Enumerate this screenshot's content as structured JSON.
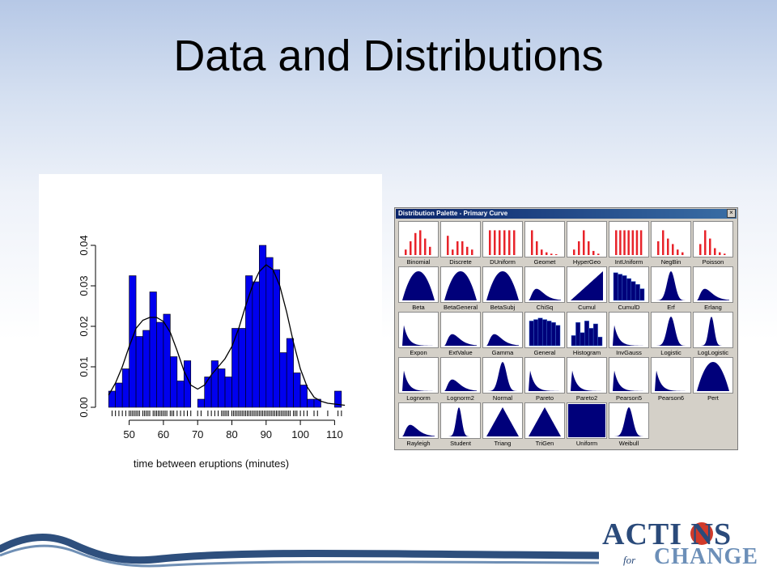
{
  "slide": {
    "title": "Data and Distributions"
  },
  "histogram": {
    "xlabel": "time between eruptions (minutes)",
    "bar_color": "#0000ee",
    "chart_data": {
      "type": "bar",
      "xlabel": "time between eruptions (minutes)",
      "ylabel": "",
      "xlim": [
        43,
        117
      ],
      "ylim": [
        0,
        0.045
      ],
      "xticks": [
        "50",
        "60",
        "70",
        "80",
        "90",
        "100",
        "110"
      ],
      "yticks": [
        "0.00",
        "0.01",
        "0.02",
        "0.03",
        "0.04"
      ],
      "bins": [
        {
          "x0": 44,
          "x1": 46,
          "y": 0.004
        },
        {
          "x0": 46,
          "x1": 48,
          "y": 0.006
        },
        {
          "x0": 48,
          "x1": 50,
          "y": 0.0095
        },
        {
          "x0": 50,
          "x1": 52,
          "y": 0.0325
        },
        {
          "x0": 52,
          "x1": 54,
          "y": 0.0175
        },
        {
          "x0": 54,
          "x1": 56,
          "y": 0.019
        },
        {
          "x0": 56,
          "x1": 58,
          "y": 0.0285
        },
        {
          "x0": 58,
          "x1": 60,
          "y": 0.021
        },
        {
          "x0": 60,
          "x1": 62,
          "y": 0.023
        },
        {
          "x0": 62,
          "x1": 64,
          "y": 0.0125
        },
        {
          "x0": 64,
          "x1": 66,
          "y": 0.0065
        },
        {
          "x0": 66,
          "x1": 68,
          "y": 0.0115
        },
        {
          "x0": 68,
          "x1": 70,
          "y": 0.0
        },
        {
          "x0": 70,
          "x1": 72,
          "y": 0.002
        },
        {
          "x0": 72,
          "x1": 74,
          "y": 0.0075
        },
        {
          "x0": 74,
          "x1": 76,
          "y": 0.0115
        },
        {
          "x0": 76,
          "x1": 78,
          "y": 0.0095
        },
        {
          "x0": 78,
          "x1": 80,
          "y": 0.0075
        },
        {
          "x0": 80,
          "x1": 82,
          "y": 0.0195
        },
        {
          "x0": 82,
          "x1": 84,
          "y": 0.0195
        },
        {
          "x0": 84,
          "x1": 86,
          "y": 0.0325
        },
        {
          "x0": 86,
          "x1": 88,
          "y": 0.031
        },
        {
          "x0": 88,
          "x1": 90,
          "y": 0.04
        },
        {
          "x0": 90,
          "x1": 92,
          "y": 0.037
        },
        {
          "x0": 92,
          "x1": 94,
          "y": 0.034
        },
        {
          "x0": 94,
          "x1": 96,
          "y": 0.0135
        },
        {
          "x0": 96,
          "x1": 98,
          "y": 0.017
        },
        {
          "x0": 98,
          "x1": 100,
          "y": 0.0085
        },
        {
          "x0": 100,
          "x1": 102,
          "y": 0.0055
        },
        {
          "x0": 102,
          "x1": 104,
          "y": 0.002
        },
        {
          "x0": 104,
          "x1": 106,
          "y": 0.002
        },
        {
          "x0": 106,
          "x1": 108,
          "y": 0.0
        },
        {
          "x0": 108,
          "x1": 110,
          "y": 0.0
        },
        {
          "x0": 110,
          "x1": 112,
          "y": 0.004
        }
      ],
      "density_curve": [
        {
          "x": 44,
          "y": 0.003
        },
        {
          "x": 46,
          "y": 0.006
        },
        {
          "x": 48,
          "y": 0.01
        },
        {
          "x": 50,
          "y": 0.015
        },
        {
          "x": 52,
          "y": 0.0195
        },
        {
          "x": 54,
          "y": 0.0215
        },
        {
          "x": 56,
          "y": 0.0222
        },
        {
          "x": 58,
          "y": 0.0222
        },
        {
          "x": 60,
          "y": 0.0212
        },
        {
          "x": 62,
          "y": 0.0185
        },
        {
          "x": 64,
          "y": 0.014
        },
        {
          "x": 66,
          "y": 0.009
        },
        {
          "x": 68,
          "y": 0.0055
        },
        {
          "x": 70,
          "y": 0.0045
        },
        {
          "x": 72,
          "y": 0.0055
        },
        {
          "x": 74,
          "y": 0.008
        },
        {
          "x": 76,
          "y": 0.01
        },
        {
          "x": 78,
          "y": 0.012
        },
        {
          "x": 80,
          "y": 0.015
        },
        {
          "x": 82,
          "y": 0.0195
        },
        {
          "x": 84,
          "y": 0.025
        },
        {
          "x": 86,
          "y": 0.03
        },
        {
          "x": 88,
          "y": 0.0335
        },
        {
          "x": 90,
          "y": 0.0352
        },
        {
          "x": 92,
          "y": 0.034
        },
        {
          "x": 94,
          "y": 0.03
        },
        {
          "x": 96,
          "y": 0.0235
        },
        {
          "x": 98,
          "y": 0.016
        },
        {
          "x": 100,
          "y": 0.0095
        },
        {
          "x": 102,
          "y": 0.005
        },
        {
          "x": 104,
          "y": 0.0025
        },
        {
          "x": 106,
          "y": 0.0015
        },
        {
          "x": 108,
          "y": 0.001
        },
        {
          "x": 110,
          "y": 0.0008
        },
        {
          "x": 113,
          "y": 0.0005
        }
      ],
      "rug": [
        45,
        46,
        47,
        48,
        49,
        50,
        50.5,
        51,
        51.5,
        52,
        52.5,
        53,
        54,
        54.5,
        55,
        55.5,
        56,
        57,
        57.5,
        58,
        58.5,
        59,
        59.5,
        60,
        60.5,
        61,
        62,
        62.5,
        63,
        64,
        65,
        66,
        67,
        68,
        70,
        71,
        73,
        74,
        75,
        76,
        77,
        77.5,
        78,
        78.5,
        79,
        80,
        80.5,
        81,
        81.5,
        82,
        82.5,
        83,
        83.5,
        84,
        84.5,
        85,
        85.5,
        86,
        86.5,
        87,
        87.5,
        88,
        88.5,
        89,
        89.5,
        90,
        90.5,
        91,
        91.5,
        92,
        92.5,
        93,
        93.5,
        94,
        94.5,
        95,
        95.5,
        96,
        96.5,
        97,
        98,
        98.5,
        99,
        100,
        101,
        102,
        104,
        105,
        108,
        111,
        112
      ]
    }
  },
  "palette": {
    "title": "Distribution Palette - Primary Curve",
    "close_label": "×",
    "discrete_color": "#e8232a",
    "continuous_color": "#00007a",
    "items": [
      {
        "label": "Binomial",
        "kind": "d1"
      },
      {
        "label": "Discrete",
        "kind": "d2"
      },
      {
        "label": "DUniform",
        "kind": "d3"
      },
      {
        "label": "Geomet",
        "kind": "d4"
      },
      {
        "label": "HyperGeo",
        "kind": "d5"
      },
      {
        "label": "IntUniform",
        "kind": "d6"
      },
      {
        "label": "NegBin",
        "kind": "d7"
      },
      {
        "label": "Poisson",
        "kind": "d8"
      },
      {
        "label": "Beta",
        "kind": "bell-wide"
      },
      {
        "label": "BetaGeneral",
        "kind": "bell-wide"
      },
      {
        "label": "BetaSubj",
        "kind": "bell-wide"
      },
      {
        "label": "ChiSq",
        "kind": "right-skew"
      },
      {
        "label": "Cumul",
        "kind": "ramp"
      },
      {
        "label": "CumulD",
        "kind": "cumuld"
      },
      {
        "label": "Erf",
        "kind": "bell"
      },
      {
        "label": "Erlang",
        "kind": "right-skew"
      },
      {
        "label": "Expon",
        "kind": "decay"
      },
      {
        "label": "ExtValue",
        "kind": "right-skew"
      },
      {
        "label": "Gamma",
        "kind": "right-skew"
      },
      {
        "label": "General",
        "kind": "general"
      },
      {
        "label": "Histogram",
        "kind": "histo"
      },
      {
        "label": "InvGauss",
        "kind": "decay"
      },
      {
        "label": "Logistic",
        "kind": "bell"
      },
      {
        "label": "LogLogistic",
        "kind": "bell-narrow"
      },
      {
        "label": "Lognorm",
        "kind": "decay"
      },
      {
        "label": "Lognorm2",
        "kind": "right-skew"
      },
      {
        "label": "Normal",
        "kind": "bell"
      },
      {
        "label": "Pareto",
        "kind": "decay"
      },
      {
        "label": "Pareto2",
        "kind": "decay"
      },
      {
        "label": "Pearson5",
        "kind": "decay"
      },
      {
        "label": "Pearson6",
        "kind": "decay"
      },
      {
        "label": "Pert",
        "kind": "bell-wide"
      },
      {
        "label": "Rayleigh",
        "kind": "right-skew"
      },
      {
        "label": "Student",
        "kind": "bell-narrow"
      },
      {
        "label": "Triang",
        "kind": "triangle"
      },
      {
        "label": "TriGen",
        "kind": "triangle"
      },
      {
        "label": "Uniform",
        "kind": "uniform"
      },
      {
        "label": "Weibull",
        "kind": "bell"
      }
    ]
  },
  "logo": {
    "actions": "ACTI  NS",
    "for": "for",
    "change": "CHANGE",
    "color": "#2a4a7a",
    "accent": "#d13a2a"
  }
}
